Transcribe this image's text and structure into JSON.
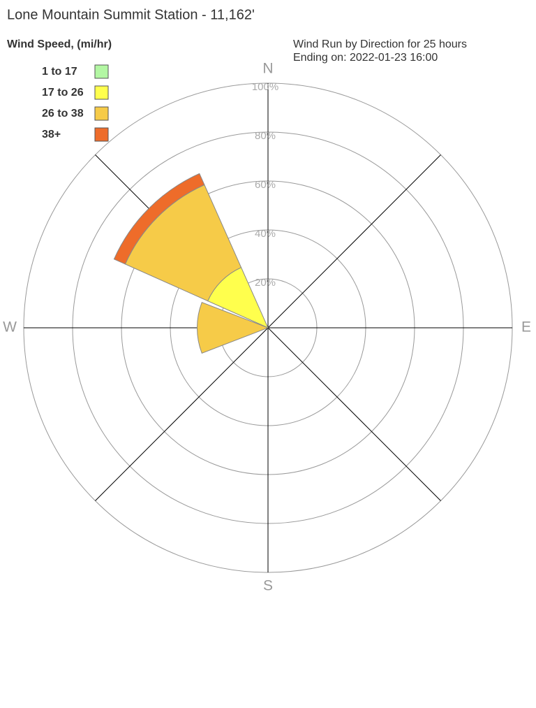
{
  "chart_data": {
    "type": "windrose",
    "title": "Lone Mountain Summit Station - 11,162'",
    "legend_title": "Wind Speed, (mi/hr)",
    "subtitle": [
      "Wind Run by Direction for 25 hours",
      "Ending on: 2022-01-23 16:00"
    ],
    "x": [
      270,
      315
    ],
    "series": [
      {
        "name": "1 to 17",
        "color": "#b3f7a3",
        "values": [
          0,
          0
        ]
      },
      {
        "name": "17 to 26",
        "color": "#ffff4d",
        "values": [
          0,
          27
        ]
      },
      {
        "name": "26 to 38",
        "color": "#f6cb48",
        "values": [
          29,
          37
        ]
      },
      {
        "name": "38+",
        "color": "#ee6c2a",
        "values": [
          0,
          5
        ]
      }
    ],
    "rlim": [
      0,
      100
    ],
    "rticks": [
      {
        "value": 20,
        "label": "20%"
      },
      {
        "value": 40,
        "label": "40%"
      },
      {
        "value": 60,
        "label": "60%"
      },
      {
        "value": 80,
        "label": "80%"
      },
      {
        "value": 100,
        "label": "100%"
      }
    ],
    "compass": [
      {
        "value": 0,
        "label": "N"
      },
      {
        "value": 90,
        "label": "E"
      },
      {
        "value": 180,
        "label": "S"
      },
      {
        "value": 270,
        "label": "W"
      }
    ]
  }
}
